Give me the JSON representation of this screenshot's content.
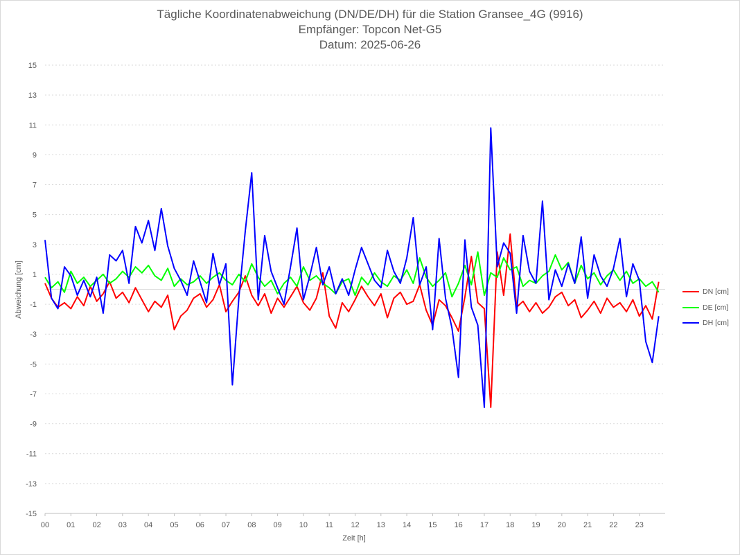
{
  "chart_data": {
    "type": "line",
    "title": [
      "Tägliche Koordinatenabweichung (DN/DE/DH) für die Station Gransee_4G (9916)",
      "Empfänger: Topcon Net-G5",
      "Datum: 2025-06-26"
    ],
    "xlabel": "Zeit [h]",
    "ylabel": "Abweichung [cm]",
    "xlim": [
      0,
      24
    ],
    "ylim": [
      -15,
      15
    ],
    "x_ticks": [
      "00",
      "01",
      "02",
      "03",
      "04",
      "05",
      "06",
      "07",
      "08",
      "09",
      "10",
      "11",
      "12",
      "13",
      "14",
      "15",
      "16",
      "17",
      "18",
      "19",
      "20",
      "21",
      "22",
      "23"
    ],
    "y_ticks": [
      15,
      13,
      11,
      9,
      7,
      5,
      3,
      1,
      -1,
      -3,
      -5,
      -7,
      -9,
      -11,
      -13,
      -15
    ],
    "grid": "horizontal dotted",
    "legend_position": "right",
    "x": [
      0.0,
      0.25,
      0.5,
      0.75,
      1.0,
      1.25,
      1.5,
      1.75,
      2.0,
      2.25,
      2.5,
      2.75,
      3.0,
      3.25,
      3.5,
      3.75,
      4.0,
      4.25,
      4.5,
      4.75,
      5.0,
      5.25,
      5.5,
      5.75,
      6.0,
      6.25,
      6.5,
      6.75,
      7.0,
      7.25,
      7.5,
      7.75,
      8.0,
      8.25,
      8.5,
      8.75,
      9.0,
      9.25,
      9.5,
      9.75,
      10.0,
      10.25,
      10.5,
      10.75,
      11.0,
      11.25,
      11.5,
      11.75,
      12.0,
      12.25,
      12.5,
      12.75,
      13.0,
      13.25,
      13.5,
      13.75,
      14.0,
      14.25,
      14.5,
      14.75,
      15.0,
      15.25,
      15.5,
      15.75,
      16.0,
      16.25,
      16.5,
      16.75,
      17.0,
      17.25,
      17.5,
      17.75,
      18.0,
      18.25,
      18.5,
      18.75,
      19.0,
      19.25,
      19.5,
      19.75,
      20.0,
      20.25,
      20.5,
      20.75,
      21.0,
      21.25,
      21.5,
      21.75,
      22.0,
      22.25,
      22.5,
      22.75,
      23.0,
      23.25,
      23.5,
      23.75
    ],
    "series": [
      {
        "name": "DN [cm]",
        "color": "#ff0000",
        "values": [
          0.4,
          -0.6,
          -1.2,
          -0.9,
          -1.3,
          -0.5,
          -1.1,
          0.2,
          -0.8,
          -0.3,
          0.5,
          -0.6,
          -0.2,
          -0.9,
          0.1,
          -0.7,
          -1.5,
          -0.8,
          -1.2,
          -0.4,
          -2.7,
          -1.8,
          -1.4,
          -0.6,
          -0.3,
          -1.2,
          -0.7,
          0.3,
          -1.5,
          -0.8,
          -0.2,
          0.9,
          -0.4,
          -1.1,
          -0.3,
          -1.6,
          -0.6,
          -1.2,
          -0.5,
          0.2,
          -0.9,
          -1.4,
          -0.6,
          1.1,
          -1.8,
          -2.6,
          -0.9,
          -1.5,
          -0.7,
          0.2,
          -0.5,
          -1.1,
          -0.3,
          -1.9,
          -0.6,
          -0.2,
          -1.0,
          -0.8,
          0.3,
          -1.4,
          -2.4,
          -0.7,
          -1.1,
          -1.9,
          -2.8,
          -0.5,
          2.2,
          -0.9,
          -1.3,
          -7.9,
          2.5,
          -0.4,
          3.7,
          -1.2,
          -0.8,
          -1.5,
          -0.9,
          -1.6,
          -1.2,
          -0.5,
          -0.2,
          -1.1,
          -0.7,
          -1.9,
          -1.4,
          -0.8,
          -1.6,
          -0.6,
          -1.2,
          -0.9,
          -1.5,
          -0.7,
          -1.8,
          -1.1,
          -2.0,
          0.5
        ]
      },
      {
        "name": "DE [cm]",
        "color": "#00ff00",
        "values": [
          0.8,
          0.1,
          0.5,
          -0.2,
          1.2,
          0.4,
          0.8,
          0.2,
          0.6,
          1.0,
          0.4,
          0.7,
          1.2,
          0.8,
          1.5,
          1.1,
          1.6,
          0.9,
          0.6,
          1.4,
          0.2,
          0.7,
          0.3,
          0.5,
          0.9,
          0.4,
          0.8,
          1.1,
          0.6,
          0.3,
          1.0,
          0.5,
          1.7,
          0.8,
          0.2,
          0.6,
          -0.3,
          0.4,
          0.8,
          0.2,
          1.5,
          0.6,
          0.9,
          0.4,
          0.1,
          -0.3,
          0.5,
          0.7,
          -0.4,
          0.8,
          0.3,
          1.1,
          0.5,
          0.2,
          0.9,
          0.6,
          1.3,
          0.4,
          2.1,
          0.8,
          0.2,
          0.6,
          1.1,
          -0.5,
          0.4,
          1.6,
          0.3,
          2.5,
          -0.4,
          1.1,
          0.8,
          2.1,
          1.3,
          1.5,
          0.2,
          0.6,
          0.4,
          0.9,
          1.2,
          2.3,
          1.3,
          1.8,
          0.4,
          1.6,
          0.7,
          1.1,
          0.3,
          0.9,
          1.3,
          0.6,
          1.2,
          0.4,
          0.7,
          0.2,
          0.5,
          -0.2
        ]
      },
      {
        "name": "DH [cm]",
        "color": "#0000ff",
        "values": [
          3.3,
          -0.6,
          -1.3,
          1.5,
          0.9,
          -0.4,
          0.6,
          -0.5,
          0.8,
          -1.6,
          2.3,
          1.9,
          2.6,
          0.4,
          4.2,
          3.1,
          4.6,
          2.6,
          5.4,
          2.9,
          1.4,
          0.6,
          -0.4,
          1.9,
          0.5,
          -0.9,
          2.4,
          0.3,
          1.7,
          -6.4,
          -0.6,
          3.9,
          7.8,
          -0.7,
          3.6,
          1.2,
          0.1,
          -1.0,
          1.5,
          4.1,
          -0.7,
          0.9,
          2.8,
          0.3,
          1.5,
          -0.3,
          0.7,
          -0.4,
          1.3,
          2.8,
          1.7,
          0.6,
          0.1,
          2.6,
          1.2,
          0.4,
          2.1,
          4.8,
          0.3,
          1.5,
          -2.7,
          3.4,
          -0.6,
          -2.6,
          -5.9,
          3.3,
          -1.2,
          -2.4,
          -7.9,
          10.8,
          1.5,
          3.1,
          2.4,
          -1.6,
          3.6,
          1.2,
          0.4,
          5.9,
          -0.7,
          1.3,
          0.2,
          1.7,
          0.4,
          3.5,
          -0.6,
          2.3,
          0.9,
          0.2,
          1.4,
          3.4,
          -0.5,
          1.7,
          0.6,
          -3.5,
          -4.9,
          -1.8
        ]
      }
    ]
  }
}
